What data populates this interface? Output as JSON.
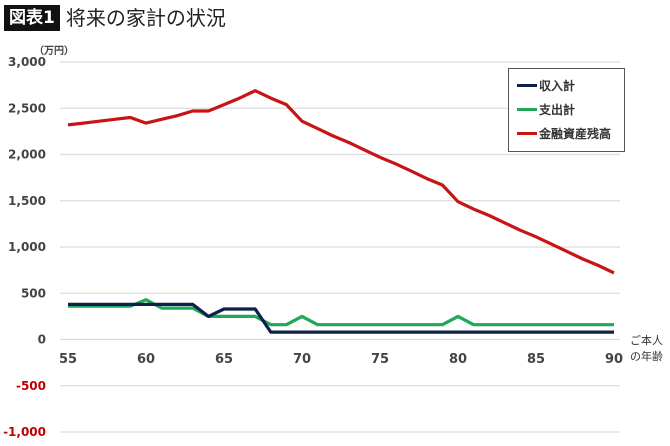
{
  "header": {
    "badge": "図表1",
    "title": "将来の家計の状況"
  },
  "axis": {
    "unit": "（万円）",
    "x_label_line1": "ご本人",
    "x_label_line2": "の年齢"
  },
  "legend": {
    "items": [
      {
        "label": "収入計",
        "color": "#0d1f4a"
      },
      {
        "label": "支出計",
        "color": "#1fa85a"
      },
      {
        "label": "金融資産残高",
        "color": "#c81414"
      }
    ]
  },
  "chart_data": {
    "type": "line",
    "title": "将来の家計の状況",
    "xlabel": "ご本人の年齢",
    "ylabel": "（万円）",
    "xlim": [
      55,
      90
    ],
    "ylim": [
      -1000,
      3000
    ],
    "x_ticks": [
      55,
      60,
      65,
      70,
      75,
      80,
      85,
      90
    ],
    "y_ticks": [
      3000,
      2500,
      2000,
      1500,
      1000,
      500,
      0,
      -500,
      -1000
    ],
    "y_tick_labels": [
      "3,000",
      "2,500",
      "2,000",
      "1,500",
      "1,000",
      "500",
      "0",
      "-500",
      "-1,000"
    ],
    "grid": true,
    "legend_position": "upper right",
    "x": [
      55,
      56,
      57,
      58,
      59,
      60,
      61,
      62,
      63,
      64,
      65,
      66,
      67,
      68,
      69,
      70,
      71,
      72,
      73,
      74,
      75,
      76,
      77,
      78,
      79,
      80,
      81,
      82,
      83,
      84,
      85,
      86,
      87,
      88,
      89,
      90
    ],
    "series": [
      {
        "name": "収入計",
        "color": "#0d1f4a",
        "values": [
          380,
          380,
          380,
          380,
          380,
          380,
          380,
          380,
          380,
          250,
          330,
          330,
          330,
          80,
          80,
          80,
          80,
          80,
          80,
          80,
          80,
          80,
          80,
          80,
          80,
          80,
          80,
          80,
          80,
          80,
          80,
          80,
          80,
          80,
          80,
          80
        ]
      },
      {
        "name": "支出計",
        "color": "#1fa85a",
        "values": [
          360,
          360,
          360,
          360,
          360,
          430,
          340,
          340,
          340,
          250,
          250,
          250,
          250,
          160,
          160,
          250,
          160,
          160,
          160,
          160,
          160,
          160,
          160,
          160,
          160,
          250,
          160,
          160,
          160,
          160,
          160,
          160,
          160,
          160,
          160,
          160
        ]
      },
      {
        "name": "金融資産残高",
        "color": "#c81414",
        "values": [
          2320,
          2340,
          2360,
          2380,
          2400,
          2340,
          2380,
          2420,
          2470,
          2470,
          2540,
          2610,
          2690,
          2610,
          2540,
          2360,
          2280,
          2200,
          2130,
          2050,
          1970,
          1900,
          1820,
          1740,
          1670,
          1490,
          1410,
          1340,
          1260,
          1180,
          1110,
          1030,
          950,
          870,
          800,
          720
        ]
      }
    ]
  }
}
